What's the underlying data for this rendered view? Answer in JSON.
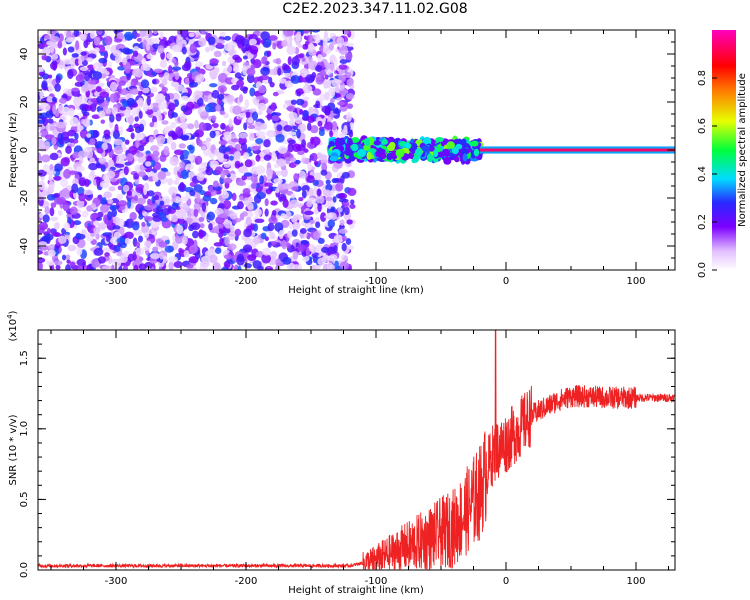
{
  "title": "C2E2.2023.347.11.02.G08",
  "chart_data": [
    {
      "type": "heatmap",
      "title": "C2E2.2023.347.11.02.G08",
      "xlabel": "Height of straight line (km)",
      "ylabel": "Frequency (Hz)",
      "xlim": [
        -360,
        130
      ],
      "ylim": [
        -50,
        50
      ],
      "x_ticks": [
        -300,
        -200,
        -100,
        0,
        100
      ],
      "y_ticks": [
        -40,
        -20,
        0,
        20,
        40
      ],
      "colorbar": {
        "label": "Normalized spectral amplitude",
        "range": [
          0.0,
          1.0
        ],
        "ticks": [
          0.0,
          0.2,
          0.4,
          0.6,
          0.8
        ],
        "colormap": "white-purple-blue-cyan-green-yellow-red-magenta"
      },
      "regions": [
        {
          "x_range": [
            -360,
            -118
          ],
          "y_range": [
            -50,
            50
          ],
          "amplitude": 0.15,
          "note": "broadband noise"
        },
        {
          "x_range": [
            -135,
            -20
          ],
          "y_center": 0,
          "y_halfwidth": 5,
          "amplitude": 0.35
        },
        {
          "x_range": [
            -20,
            130
          ],
          "y_center": 0,
          "y_halfwidth": 1.5,
          "amplitude": 0.9
        }
      ]
    },
    {
      "type": "line",
      "xlabel": "Height of straight line (km)",
      "ylabel": "SNR (10 * v/v)",
      "y_multiplier": "(x10",
      "y_multiplier_exp": "4",
      "y_multiplier_close": ")",
      "xlim": [
        -360,
        130
      ],
      "ylim": [
        0,
        1.7
      ],
      "x_ticks": [
        -300,
        -200,
        -100,
        0,
        100
      ],
      "y_ticks": [
        0.0,
        0.5,
        1.0,
        1.5
      ],
      "series": [
        {
          "color": "#ee2222",
          "x": [
            -360,
            -300,
            -200,
            -120,
            -100,
            -80,
            -60,
            -40,
            -30,
            -20,
            -15,
            -12,
            -10,
            0,
            10,
            20,
            30,
            40,
            50,
            60,
            80,
            100,
            130
          ],
          "y": [
            0.03,
            0.03,
            0.03,
            0.03,
            0.07,
            0.15,
            0.22,
            0.3,
            0.42,
            0.55,
            0.7,
            0.78,
            0.82,
            0.9,
            1.0,
            1.1,
            1.15,
            1.2,
            1.23,
            1.23,
            1.22,
            1.22,
            1.22
          ]
        }
      ],
      "peak": {
        "x": -8,
        "y": 1.7
      }
    }
  ]
}
